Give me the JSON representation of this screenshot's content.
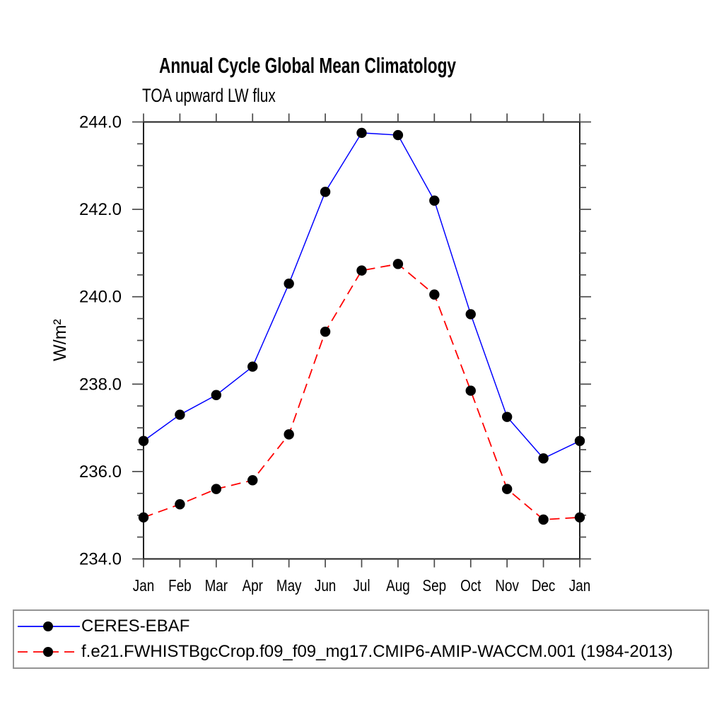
{
  "chart_data": {
    "type": "line",
    "title": "Annual Cycle Global Mean Climatology",
    "subtitle": "TOA upward LW flux",
    "ylabel": "W/m²",
    "ylim": [
      234.0,
      244.0
    ],
    "ytick_step_major": 2.0,
    "ytick_step_minor": 0.5,
    "ytick_labels": [
      "234.0",
      "236.0",
      "238.0",
      "240.0",
      "242.0",
      "244.0"
    ],
    "categories": [
      "Jan",
      "Feb",
      "Mar",
      "Apr",
      "May",
      "Jun",
      "Jul",
      "Aug",
      "Sep",
      "Oct",
      "Nov",
      "Dec",
      "Jan"
    ],
    "grid": false,
    "legend_position": "bottom-box",
    "series": [
      {
        "name": "CERES-EBAF",
        "color": "#0000ff",
        "line_style": "solid",
        "marker": "filled-circle",
        "marker_color": "#000000",
        "values": [
          236.7,
          237.3,
          237.75,
          238.4,
          240.3,
          242.4,
          243.75,
          243.7,
          242.2,
          239.6,
          237.25,
          236.3,
          236.7
        ]
      },
      {
        "name": "f.e21.FWHISTBgcCrop.f09_f09_mg17.CMIP6-AMIP-WACCM.001 (1984-2013)",
        "color": "#ff0000",
        "line_style": "dashed",
        "marker": "filled-circle",
        "marker_color": "#000000",
        "values": [
          234.95,
          235.25,
          235.6,
          235.8,
          236.85,
          239.2,
          240.6,
          240.75,
          240.05,
          237.85,
          235.6,
          234.9,
          234.95
        ]
      }
    ]
  }
}
